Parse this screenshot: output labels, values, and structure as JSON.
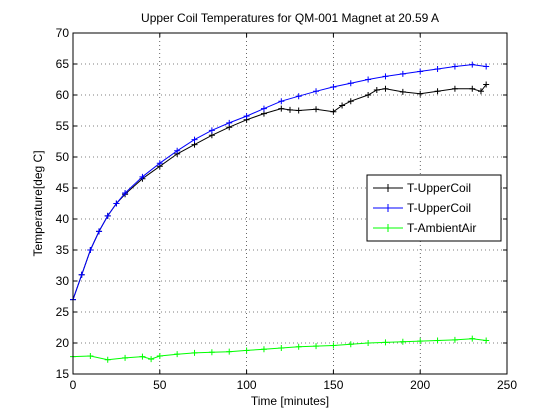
{
  "chart_data": {
    "type": "line",
    "title": "Upper Coil Temperatures for QM-001 Magnet at 20.59 A",
    "xlabel": "Time [minutes]",
    "ylabel": "Temperature[deg C]",
    "xlim": [
      0,
      250
    ],
    "ylim": [
      15,
      70
    ],
    "xticks": [
      0,
      50,
      100,
      150,
      200,
      250
    ],
    "yticks": [
      15,
      20,
      25,
      30,
      35,
      40,
      45,
      50,
      55,
      60,
      65,
      70
    ],
    "grid": true,
    "legend_position": "right",
    "marker": "+",
    "series": [
      {
        "name": "T-UpperCoil",
        "color": "#000000",
        "x": [
          0,
          5,
          10,
          15,
          20,
          25,
          30,
          40,
          50,
          60,
          70,
          80,
          90,
          100,
          110,
          120,
          125,
          130,
          140,
          150,
          155,
          160,
          170,
          175,
          180,
          190,
          200,
          210,
          220,
          230,
          235,
          238
        ],
        "y": [
          27,
          31,
          35,
          38,
          40.5,
          42.5,
          44,
          46.5,
          48.5,
          50.5,
          52,
          53.5,
          54.8,
          56,
          57,
          57.8,
          57.6,
          57.5,
          57.7,
          57.3,
          58.3,
          59,
          60,
          60.8,
          61,
          60.5,
          60.2,
          60.6,
          61,
          61,
          60.6,
          61.7
        ]
      },
      {
        "name": "T-UpperCoil",
        "color": "#0000ff",
        "x": [
          0,
          5,
          10,
          15,
          20,
          25,
          30,
          40,
          50,
          60,
          70,
          80,
          90,
          100,
          110,
          120,
          130,
          140,
          150,
          160,
          170,
          180,
          190,
          200,
          210,
          220,
          230,
          238
        ],
        "y": [
          27,
          31,
          35,
          38,
          40.5,
          42.5,
          44.2,
          46.8,
          49,
          51,
          52.8,
          54.3,
          55.5,
          56.6,
          57.8,
          59,
          59.8,
          60.6,
          61.3,
          61.9,
          62.5,
          63,
          63.4,
          63.8,
          64.2,
          64.6,
          64.9,
          64.6
        ]
      },
      {
        "name": "T-AmbientAir",
        "color": "#00ff00",
        "x": [
          0,
          10,
          20,
          30,
          40,
          45,
          50,
          60,
          70,
          80,
          90,
          100,
          110,
          120,
          130,
          140,
          150,
          160,
          170,
          180,
          190,
          200,
          210,
          220,
          230,
          238
        ],
        "y": [
          17.8,
          17.9,
          17.3,
          17.6,
          17.8,
          17.4,
          17.9,
          18.2,
          18.4,
          18.5,
          18.6,
          18.8,
          19,
          19.2,
          19.4,
          19.5,
          19.6,
          19.8,
          20,
          20.1,
          20.2,
          20.3,
          20.4,
          20.5,
          20.7,
          20.4
        ]
      }
    ]
  }
}
